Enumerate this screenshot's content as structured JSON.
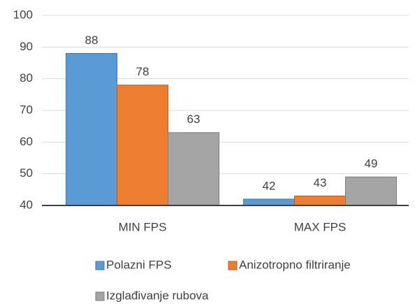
{
  "chart_data": {
    "type": "bar",
    "categories": [
      "MIN FPS",
      "MAX FPS"
    ],
    "series": [
      {
        "name": "Polazni FPS",
        "color": "#5b9bd5",
        "values": [
          88,
          42
        ]
      },
      {
        "name": "Anizotropno filtriranje",
        "color": "#ed7d31",
        "values": [
          78,
          43
        ]
      },
      {
        "name": "Izglađivanje rubova",
        "color": "#a5a5a5",
        "values": [
          63,
          49
        ]
      }
    ],
    "ylim": [
      40,
      100
    ],
    "yticks": [
      40,
      50,
      60,
      70,
      80,
      90,
      100
    ],
    "grid": true,
    "legend": "bottom"
  }
}
